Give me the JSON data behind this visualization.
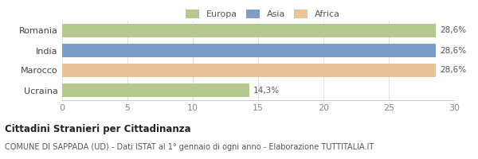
{
  "categories": [
    "Romania",
    "India",
    "Marocco",
    "Ucraina"
  ],
  "values": [
    28.6,
    28.6,
    28.6,
    14.3
  ],
  "bar_colors": [
    "#b5c98e",
    "#7b9dc7",
    "#e8c49a",
    "#b5c98e"
  ],
  "bar_labels": [
    "28,6%",
    "28,6%",
    "28,6%",
    "14,3%"
  ],
  "legend_items": [
    {
      "label": "Europa",
      "color": "#b5c98e"
    },
    {
      "label": "Asia",
      "color": "#7b9dc7"
    },
    {
      "label": "Africa",
      "color": "#e8c49a"
    }
  ],
  "xlim": [
    0,
    30
  ],
  "xticks": [
    0,
    5,
    10,
    15,
    20,
    25,
    30
  ],
  "title_bold": "Cittadini Stranieri per Cittadinanza",
  "title_sub": "COMUNE DI SAPPADA (UD) - Dati ISTAT al 1° gennaio di ogni anno - Elaborazione TUTTITALIA.IT",
  "background_color": "#ffffff"
}
